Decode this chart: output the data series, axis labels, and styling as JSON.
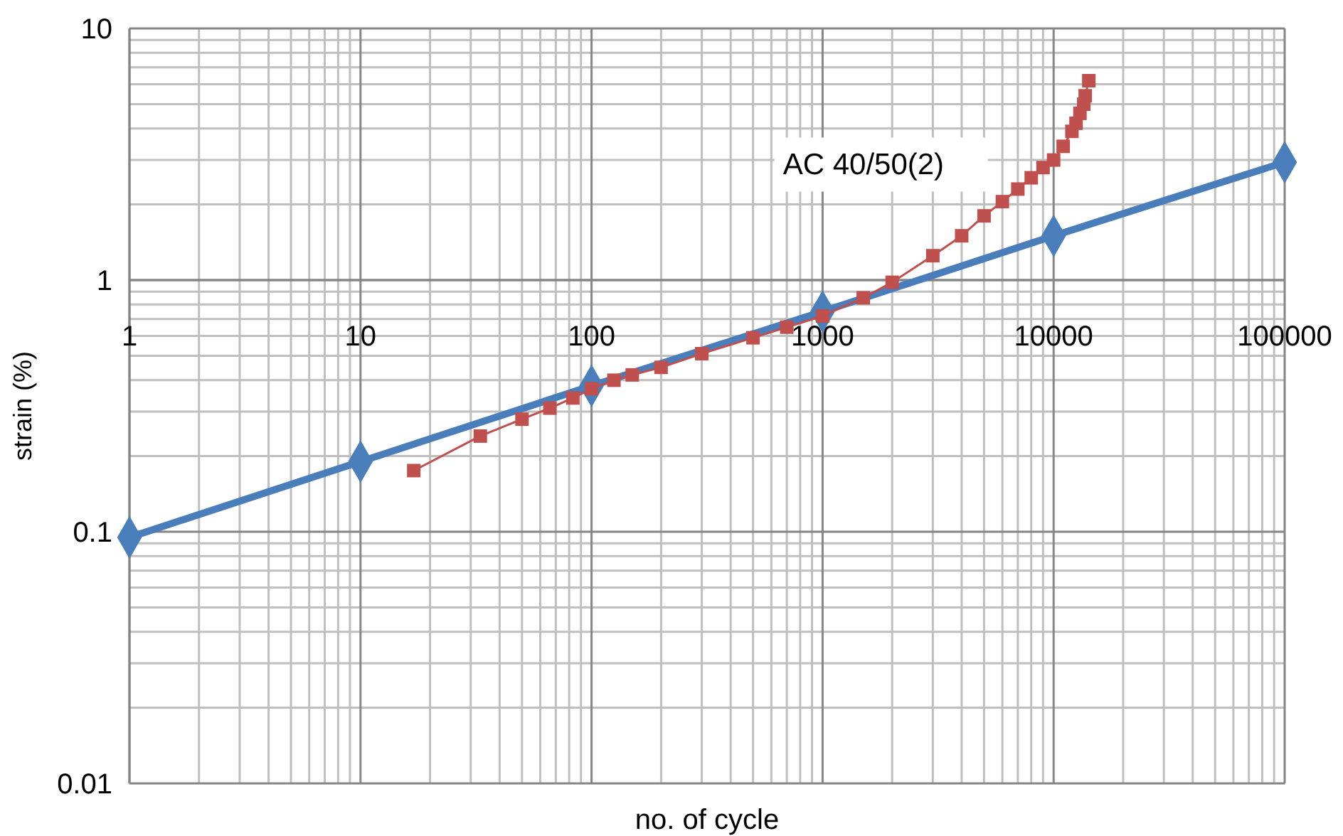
{
  "chart_data": {
    "type": "line",
    "xlabel": "no. of cycle",
    "ylabel": "strain (%)",
    "log": "xy",
    "grid": true,
    "xlim": [
      1,
      100000
    ],
    "xticks": [
      1,
      10,
      100,
      1000,
      10000,
      100000
    ],
    "ylim": [
      0.01,
      10
    ],
    "yticks": [
      0.01,
      0.1,
      1,
      10
    ],
    "series": [
      {
        "name": "AC 40/50(2)",
        "color": "#c0504d",
        "marker": "square",
        "x": [
          17,
          33,
          50,
          66,
          83,
          100,
          125,
          150,
          200,
          300,
          500,
          700,
          1000,
          1500,
          2000,
          3000,
          4000,
          5000,
          6000,
          7000,
          8000,
          9000,
          10000,
          11000,
          12000,
          12500,
          13000,
          13500,
          13700,
          14200
        ],
        "values": [
          0.175,
          0.24,
          0.28,
          0.31,
          0.34,
          0.37,
          0.4,
          0.42,
          0.45,
          0.51,
          0.59,
          0.65,
          0.72,
          0.85,
          0.98,
          1.25,
          1.5,
          1.8,
          2.05,
          2.3,
          2.55,
          2.8,
          3.0,
          3.4,
          3.9,
          4.2,
          4.6,
          5.0,
          5.4,
          6.2
        ]
      },
      {
        "color": "#4a7ebb",
        "marker": "diamond",
        "x": [
          1,
          10,
          100,
          1000,
          10000,
          100000
        ],
        "values": [
          0.095,
          0.19,
          0.38,
          0.75,
          1.5,
          2.94
        ]
      }
    ]
  }
}
